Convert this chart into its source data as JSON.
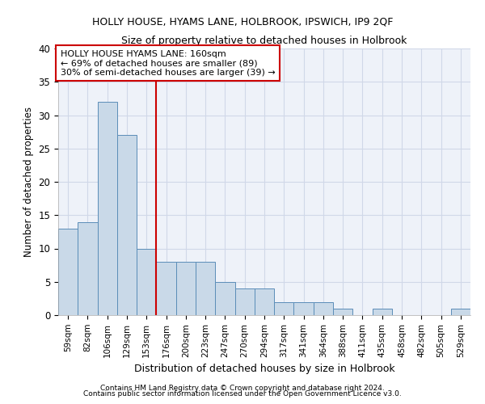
{
  "title": "HOLLY HOUSE, HYAMS LANE, HOLBROOK, IPSWICH, IP9 2QF",
  "subtitle": "Size of property relative to detached houses in Holbrook",
  "xlabel": "Distribution of detached houses by size in Holbrook",
  "ylabel": "Number of detached properties",
  "footnote1": "Contains HM Land Registry data © Crown copyright and database right 2024.",
  "footnote2": "Contains public sector information licensed under the Open Government Licence v3.0.",
  "annotation_line1": "HOLLY HOUSE HYAMS LANE: 160sqm",
  "annotation_line2": "← 69% of detached houses are smaller (89)",
  "annotation_line3": "30% of semi-detached houses are larger (39) →",
  "bin_labels": [
    "59sqm",
    "82sqm",
    "106sqm",
    "129sqm",
    "153sqm",
    "176sqm",
    "200sqm",
    "223sqm",
    "247sqm",
    "270sqm",
    "294sqm",
    "317sqm",
    "341sqm",
    "364sqm",
    "388sqm",
    "411sqm",
    "435sqm",
    "458sqm",
    "482sqm",
    "505sqm",
    "529sqm"
  ],
  "counts": [
    13,
    14,
    32,
    27,
    10,
    8,
    8,
    8,
    5,
    4,
    4,
    2,
    2,
    2,
    1,
    0,
    1,
    0,
    0,
    0,
    1
  ],
  "bar_color": "#c9d9e8",
  "bar_edgecolor": "#5b8db8",
  "vline_color": "#cc0000",
  "vline_x": 4.5,
  "grid_color": "#d0d8e8",
  "bg_color": "#eef2f9",
  "annotation_box_color": "#ffffff",
  "annotation_box_edgecolor": "#cc0000",
  "ylim": [
    0,
    40
  ],
  "yticks": [
    0,
    5,
    10,
    15,
    20,
    25,
    30,
    35,
    40
  ]
}
